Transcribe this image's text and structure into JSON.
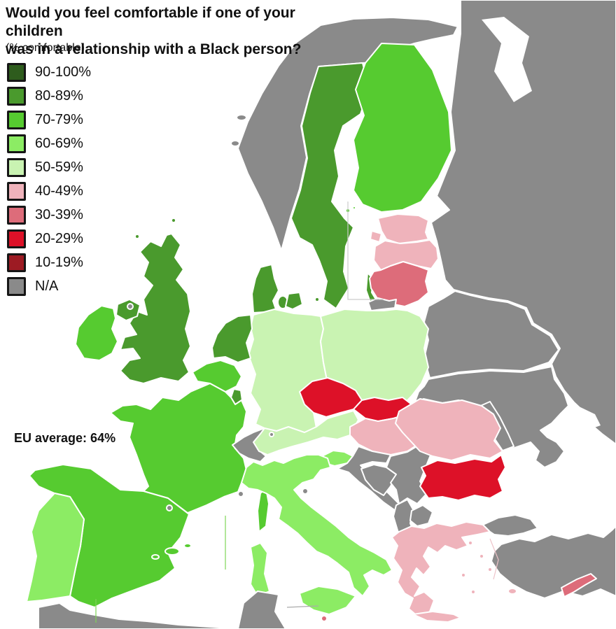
{
  "title": {
    "line1": "Would you feel comfortable if one of your children",
    "line2": "was in a relationship with a Black person?",
    "subtitle": "(% comfortable)"
  },
  "eu_average_label": "EU average: 64%",
  "legend": {
    "items": [
      {
        "label": "90-100%",
        "color": "#2e5c1d"
      },
      {
        "label": "80-89%",
        "color": "#4a9a2d"
      },
      {
        "label": "70-79%",
        "color": "#56cb30"
      },
      {
        "label": "60-69%",
        "color": "#8cec64"
      },
      {
        "label": "50-59%",
        "color": "#c9f3b2"
      },
      {
        "label": "40-49%",
        "color": "#efb3bb"
      },
      {
        "label": "30-39%",
        "color": "#dd6c7a"
      },
      {
        "label": "20-29%",
        "color": "#dd1128"
      },
      {
        "label": "10-19%",
        "color": "#9d1b23"
      },
      {
        "label": "N/A",
        "color": "#8a8a8a"
      }
    ]
  },
  "map": {
    "sea_color": "#ffffff",
    "non_eu_color": "#8a8a8a",
    "border_color": "#ffffff"
  },
  "chart_data": {
    "type": "choropleth_map",
    "title": "Would you feel comfortable if one of your children was in a relationship with a Black person?",
    "unit": "% comfortable",
    "eu_average_pct": 64,
    "classes": [
      "90-100%",
      "80-89%",
      "70-79%",
      "60-69%",
      "50-59%",
      "40-49%",
      "30-39%",
      "20-29%",
      "10-19%",
      "N/A"
    ],
    "countries": [
      {
        "id": "sweden",
        "name": "Sweden",
        "range": "80-89%"
      },
      {
        "id": "finland",
        "name": "Finland",
        "range": "70-79%"
      },
      {
        "id": "denmark",
        "name": "Denmark",
        "range": "80-89%"
      },
      {
        "id": "united-kingdom",
        "name": "United Kingdom",
        "range": "80-89%"
      },
      {
        "id": "ireland",
        "name": "Ireland",
        "range": "70-79%"
      },
      {
        "id": "netherlands",
        "name": "Netherlands",
        "range": "80-89%"
      },
      {
        "id": "belgium",
        "name": "Belgium",
        "range": "70-79%"
      },
      {
        "id": "luxembourg",
        "name": "Luxembourg",
        "range": "80-89%"
      },
      {
        "id": "france",
        "name": "France",
        "range": "70-79%"
      },
      {
        "id": "spain",
        "name": "Spain",
        "range": "70-79%"
      },
      {
        "id": "portugal",
        "name": "Portugal",
        "range": "60-69%"
      },
      {
        "id": "germany",
        "name": "Germany",
        "range": "50-59%"
      },
      {
        "id": "poland",
        "name": "Poland",
        "range": "50-59%"
      },
      {
        "id": "austria",
        "name": "Austria",
        "range": "50-59%"
      },
      {
        "id": "czech-republic",
        "name": "Czech Republic",
        "range": "20-29%"
      },
      {
        "id": "slovakia",
        "name": "Slovakia",
        "range": "20-29%"
      },
      {
        "id": "hungary",
        "name": "Hungary",
        "range": "40-49%"
      },
      {
        "id": "slovenia",
        "name": "Slovenia",
        "range": "60-69%"
      },
      {
        "id": "italy",
        "name": "Italy",
        "range": "60-69%"
      },
      {
        "id": "croatia",
        "name": "Croatia",
        "range": "N/A"
      },
      {
        "id": "romania",
        "name": "Romania",
        "range": "40-49%"
      },
      {
        "id": "bulgaria",
        "name": "Bulgaria",
        "range": "20-29%"
      },
      {
        "id": "greece",
        "name": "Greece",
        "range": "40-49%"
      },
      {
        "id": "estonia",
        "name": "Estonia",
        "range": "40-49%"
      },
      {
        "id": "latvia",
        "name": "Latvia",
        "range": "40-49%"
      },
      {
        "id": "lithuania",
        "name": "Lithuania",
        "range": "30-39%"
      },
      {
        "id": "malta",
        "name": "Malta",
        "range": "30-39%"
      },
      {
        "id": "cyprus",
        "name": "Cyprus",
        "range": "30-39%"
      },
      {
        "id": "norway",
        "name": "Norway",
        "range": "N/A"
      },
      {
        "id": "switzerland",
        "name": "Switzerland",
        "range": "N/A"
      },
      {
        "id": "russia",
        "name": "Russia",
        "range": "N/A"
      },
      {
        "id": "belarus",
        "name": "Belarus",
        "range": "N/A"
      },
      {
        "id": "ukraine",
        "name": "Ukraine",
        "range": "N/A"
      },
      {
        "id": "moldova",
        "name": "Moldova",
        "range": "N/A"
      },
      {
        "id": "turkey",
        "name": "Turkey",
        "range": "N/A"
      },
      {
        "id": "bosnia",
        "name": "Bosnia and Herzegovina",
        "range": "N/A"
      },
      {
        "id": "serbia",
        "name": "Serbia",
        "range": "N/A"
      },
      {
        "id": "montenegro-albania",
        "name": "Montenegro / Albania",
        "range": "N/A"
      },
      {
        "id": "north-macedonia",
        "name": "North Macedonia",
        "range": "N/A"
      }
    ]
  }
}
